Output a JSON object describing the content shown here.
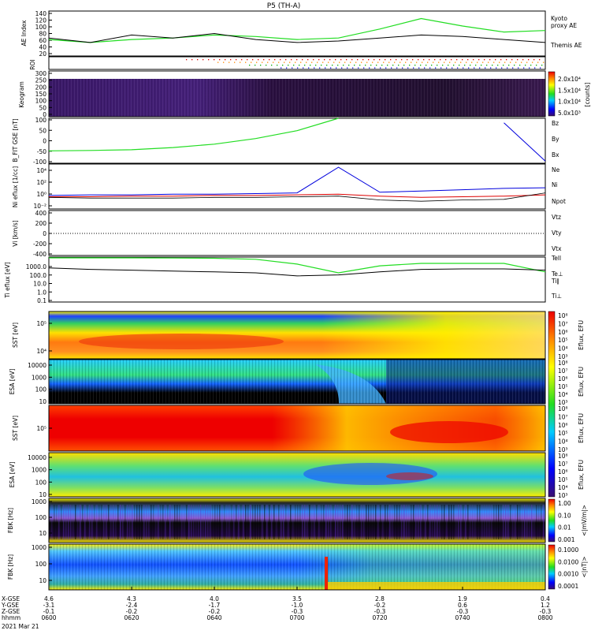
{
  "title": "P5 (TH-A)",
  "date_label": "2021 Mar 21",
  "colors": {
    "green": "#22dd22",
    "red": "#dd0000",
    "blue": "#0000dd",
    "black": "#000000",
    "dark": "#1a0a2e",
    "purple": "#4a1a8a"
  },
  "time_axis": {
    "ticks": [
      "0600",
      "0620",
      "0640",
      "0700",
      "0720",
      "0740",
      "0800"
    ],
    "row_labels": [
      "X-GSE",
      "Y-GSE",
      "Z-GSE",
      "hhmm"
    ],
    "x_gse": [
      "4.6",
      "4.3",
      "4.0",
      "3.5",
      "2.8",
      "1.9",
      "0.4"
    ],
    "y_gse": [
      "-3.1",
      "-2.4",
      "-1.7",
      "-1.0",
      "-0.2",
      "0.6",
      "1.2"
    ],
    "z_gse": [
      "-0.1",
      "-0.2",
      "-0.2",
      "-0.3",
      "-0.3",
      "-0.3",
      "-0.3"
    ]
  },
  "panels": {
    "ae": {
      "ylabel": "AE Index",
      "yticks": [
        "140",
        "120",
        "100",
        "80",
        "60",
        "40",
        "20"
      ],
      "legend": [
        {
          "text": "Kyoto",
          "color": "#22dd22"
        },
        {
          "text": "proxy AE",
          "color": "#22dd22"
        },
        {
          "text": "Themis AE",
          "color": "#000000"
        }
      ]
    },
    "roi": {
      "ylabel": "ROI"
    },
    "keogram": {
      "ylabel": "Keogram",
      "yticks": [
        "300",
        "250",
        "200",
        "150",
        "100",
        "50",
        "0"
      ],
      "cbar_ticks": [
        "2.0x10⁴",
        "1.5x10⁴",
        "1.0x10⁴",
        "5.0x10³"
      ],
      "cbar_label": "[counts]"
    },
    "bfit": {
      "ylabel": "B_FIT GSE [nT]",
      "yticks": [
        "100",
        "50",
        "0",
        "-50",
        "-100"
      ],
      "legend": [
        {
          "text": "Bz",
          "color": "#dd0000"
        },
        {
          "text": "By",
          "color": "#22dd22"
        },
        {
          "text": "Bx",
          "color": "#0000dd"
        }
      ]
    },
    "density": {
      "ylabel": "Ni eflux [1/cc]",
      "yticks": [
        "10⁴",
        "10²",
        "10⁰",
        "10⁻²"
      ],
      "legend": [
        {
          "text": "Ne",
          "color": "#dd0000"
        },
        {
          "text": "Ni",
          "color": "#000000"
        },
        {
          "text": "Npot",
          "color": "#0000dd"
        }
      ]
    },
    "velocity": {
      "ylabel": "Vi [km/s]",
      "yticks": [
        "400",
        "200",
        "0",
        "-200",
        "-400"
      ],
      "legend": [
        {
          "text": "Vtz",
          "color": "#dd0000"
        },
        {
          "text": "Vty",
          "color": "#22dd22"
        },
        {
          "text": "Vtx",
          "color": "#0000dd"
        }
      ]
    },
    "temperature": {
      "ylabel": "Ti eflux [eV]",
      "yticks": [
        "1000.0",
        "100.0",
        "10.0",
        "1.0",
        "0.1"
      ],
      "legend": [
        {
          "text": "Tell",
          "color": "#000000"
        },
        {
          "text": "Te⊥",
          "color": "#dd0000"
        },
        {
          "text": "Ti∥",
          "color": "#22dd22"
        },
        {
          "text": "Ti⊥",
          "color": "#0000dd"
        }
      ]
    },
    "sst_e": {
      "ylabel": "SST [eV]",
      "yticks": [
        "10⁵",
        "10⁴"
      ],
      "cbar_ticks": [
        "10⁸",
        "10⁷",
        "10⁶",
        "10⁵",
        "10⁴",
        "10³"
      ],
      "cbar_label": "Eflux, EFU"
    },
    "esa_e": {
      "ylabel": "ESA [eV]",
      "yticks": [
        "10000",
        "1000",
        "100",
        "10"
      ],
      "cbar_ticks": [
        "10⁸",
        "10⁷",
        "10⁶",
        "10⁵",
        "10⁴",
        "10³"
      ],
      "cbar_label": "Eflux, EFU"
    },
    "sst_i": {
      "ylabel": "SST [eV]",
      "yticks": [
        "10⁵"
      ],
      "cbar_ticks": [
        "10⁸",
        "10⁷",
        "10⁶",
        "10⁵",
        "10⁴",
        "10³"
      ],
      "cbar_label": "Eflux, EFU"
    },
    "esa_i": {
      "ylabel": "ESA [eV]",
      "yticks": [
        "10000",
        "1000",
        "100",
        "10"
      ],
      "cbar_ticks": [
        "10⁸",
        "10⁷",
        "10⁶",
        "10⁵",
        "10⁴",
        "10³"
      ],
      "cbar_label": "Eflux, EFU"
    },
    "fbk_e": {
      "ylabel": "FBK [Hz]",
      "yticks": [
        "1000",
        "100",
        "10"
      ],
      "cbar_ticks": [
        "1.00",
        "0.10",
        "0.01",
        "0.001"
      ],
      "cbar_label": "<|mV/m|>"
    },
    "fbk_b": {
      "ylabel": "FBK [Hz]",
      "yticks": [
        "1000",
        "100",
        "10"
      ],
      "cbar_ticks": [
        "0.1000",
        "0.0100",
        "0.0010",
        "0.0001"
      ],
      "cbar_label": "<|nT|>"
    }
  },
  "chart_data": [
    {
      "type": "line",
      "title": "P5 (TH-A)",
      "ylabel": "AE Index",
      "ylim": [
        0,
        150
      ],
      "x": [
        "0600",
        "0610",
        "0620",
        "0630",
        "0640",
        "0650",
        "0700",
        "0710",
        "0720",
        "0730",
        "0740",
        "0750",
        "0800"
      ],
      "series": [
        {
          "name": "Themis AE",
          "values": [
            60,
            45,
            70,
            60,
            75,
            55,
            45,
            50,
            60,
            70,
            65,
            55,
            45
          ]
        },
        {
          "name": "Kyoto proxy AE",
          "values": [
            55,
            45,
            55,
            60,
            70,
            65,
            55,
            60,
            90,
            125,
            100,
            80,
            85
          ]
        }
      ]
    },
    {
      "type": "line",
      "ylabel": "B_FIT GSE [nT]",
      "ylim": [
        -100,
        100
      ],
      "x": [
        "0600",
        "0610",
        "0620",
        "0630",
        "0640",
        "0650",
        "0700",
        "0710",
        "0720",
        "0730",
        "0740",
        "0750",
        "0800"
      ],
      "series": [
        {
          "name": "By",
          "values": [
            -45,
            -43,
            -40,
            -30,
            -15,
            10,
            45,
            100,
            null,
            null,
            null,
            null,
            null
          ]
        },
        {
          "name": "Bx",
          "values": [
            null,
            null,
            null,
            null,
            null,
            null,
            null,
            null,
            null,
            null,
            null,
            80,
            -90
          ]
        }
      ]
    },
    {
      "type": "line",
      "ylabel": "Ni eflux [1/cc]",
      "ylim": [
        -2,
        5
      ],
      "x": [
        "0600",
        "0610",
        "0620",
        "0630",
        "0640",
        "0650",
        "0700",
        "0710",
        "0720",
        "0730",
        "0740",
        "0750",
        "0800"
      ],
      "series": [
        {
          "name": "Npot",
          "values": [
            0.1,
            0.2,
            0.2,
            0.3,
            0.3,
            0.4,
            0.5,
            4.5,
            0.6,
            0.8,
            1.0,
            1.2,
            1.3
          ]
        },
        {
          "name": "Ne",
          "values": [
            -0.1,
            -0.1,
            0.0,
            0.0,
            0.1,
            0.1,
            0.2,
            0.3,
            0.0,
            -0.2,
            -0.1,
            0.0,
            0.2
          ]
        },
        {
          "name": "Ni",
          "values": [
            -0.2,
            -0.3,
            -0.3,
            -0.3,
            -0.2,
            -0.2,
            -0.1,
            0.0,
            -0.6,
            -0.8,
            -0.6,
            -0.5,
            0.5
          ]
        }
      ]
    },
    {
      "type": "line",
      "ylabel": "Ti eflux [eV]",
      "ylim": [
        0.1,
        3000
      ],
      "x": [
        "0600",
        "0610",
        "0620",
        "0630",
        "0640",
        "0650",
        "0700",
        "0710",
        "0720",
        "0730",
        "0740",
        "0750",
        "0800"
      ],
      "series": [
        {
          "name": "Tell",
          "values": [
            250,
            180,
            150,
            120,
            100,
            80,
            40,
            50,
            100,
            180,
            200,
            200,
            150
          ]
        },
        {
          "name": "Ti∥",
          "values": [
            2500,
            2500,
            2500,
            2400,
            2300,
            1800,
            600,
            80,
            400,
            700,
            700,
            700,
            100
          ]
        }
      ]
    }
  ]
}
